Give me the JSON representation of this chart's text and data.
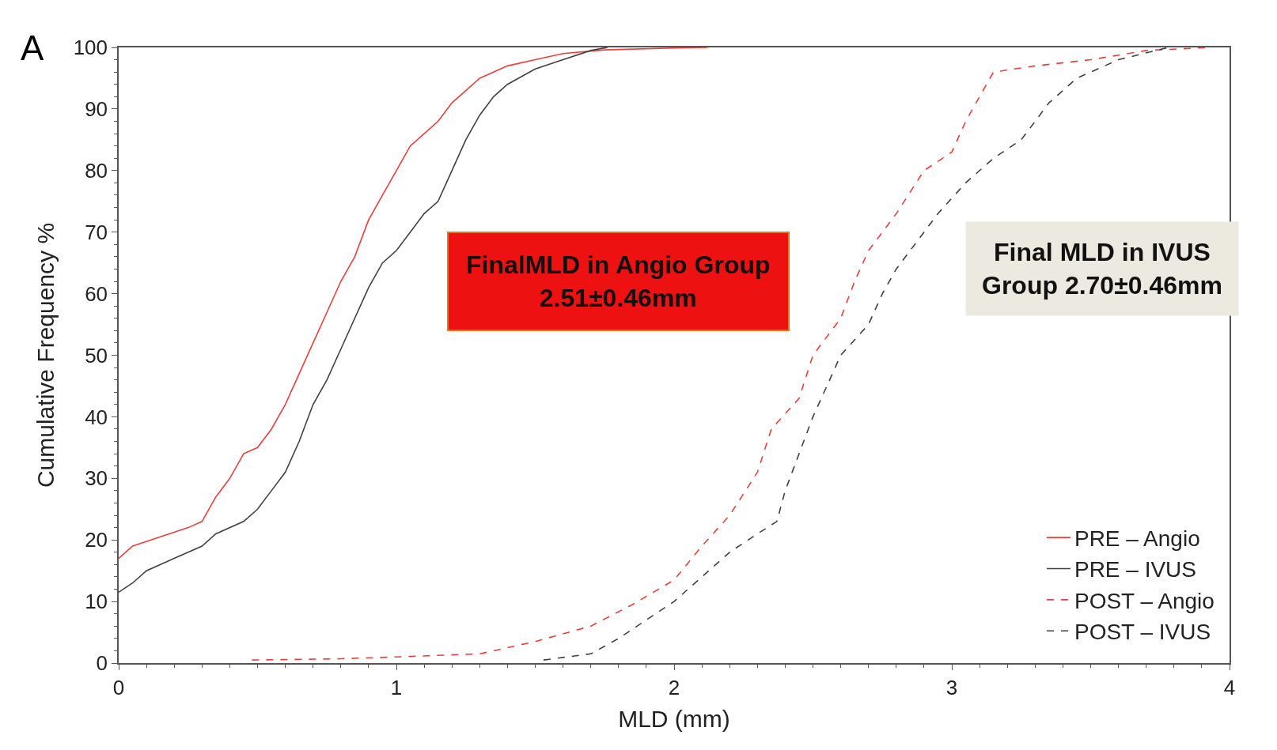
{
  "chart_data": {
    "type": "line",
    "xlabel": "MLD (mm)",
    "ylabel": "Cumulative Frequency %",
    "xlim": [
      0,
      4
    ],
    "xticks": [
      0,
      1,
      2,
      3,
      4
    ],
    "ylim": [
      0,
      100
    ],
    "yticks": [
      0,
      10,
      20,
      30,
      40,
      50,
      60,
      70,
      80,
      90,
      100
    ],
    "legend": "bottom right",
    "marker": "none",
    "annotations": [
      "A",
      "FinalMLD in Angio Group\n2.51±0.46mm",
      "Final MLD in IVUS\nGroup 2.70±0.46mm"
    ],
    "series": [
      {
        "name": "PRE – Angio",
        "color": "#e8403c",
        "line_style": "solid",
        "x": [
          0,
          0.05,
          0.15,
          0.25,
          0.3,
          0.35,
          0.4,
          0.45,
          0.5,
          0.55,
          0.6,
          0.65,
          0.7,
          0.75,
          0.8,
          0.85,
          0.9,
          0.95,
          1.0,
          1.05,
          1.1,
          1.15,
          1.2,
          1.25,
          1.3,
          1.4,
          1.5,
          1.6,
          1.75,
          2.0,
          2.12
        ],
        "values": [
          17,
          19,
          20.5,
          22,
          23,
          27,
          30,
          34,
          35,
          38,
          42,
          47,
          52,
          57,
          62,
          66,
          72,
          76,
          80,
          84,
          86,
          88,
          91,
          93,
          95,
          97,
          98,
          99,
          99.6,
          99.9,
          100
        ]
      },
      {
        "name": "PRE – IVUS",
        "color": "#404040",
        "line_style": "solid",
        "x": [
          0,
          0.05,
          0.1,
          0.2,
          0.3,
          0.35,
          0.45,
          0.5,
          0.55,
          0.6,
          0.65,
          0.7,
          0.75,
          0.8,
          0.85,
          0.9,
          0.95,
          1.0,
          1.05,
          1.1,
          1.15,
          1.2,
          1.25,
          1.3,
          1.35,
          1.4,
          1.5,
          1.6,
          1.7,
          1.76
        ],
        "values": [
          11.5,
          13,
          15,
          17,
          19,
          21,
          23,
          25,
          28,
          31,
          36,
          42,
          46,
          51,
          56,
          61,
          65,
          67,
          70,
          73,
          75,
          80,
          85,
          89,
          92,
          94,
          96.5,
          98,
          99.5,
          100
        ]
      },
      {
        "name": "POST – Angio",
        "color": "#e8403c",
        "line_style": "dashed",
        "x": [
          0.48,
          0.8,
          1.0,
          1.3,
          1.5,
          1.7,
          1.85,
          2.0,
          2.1,
          2.2,
          2.3,
          2.35,
          2.45,
          2.5,
          2.6,
          2.65,
          2.7,
          2.8,
          2.9,
          3.0,
          3.05,
          3.15,
          3.3,
          3.5,
          3.7,
          3.93
        ],
        "values": [
          0.5,
          0.7,
          1,
          1.5,
          3.5,
          6,
          9.5,
          13.5,
          19,
          24,
          31,
          38,
          43,
          50,
          56,
          62,
          67,
          73,
          80,
          83,
          88,
          96,
          97,
          98,
          99.5,
          100
        ]
      },
      {
        "name": "POST – IVUS",
        "color": "#404040",
        "line_style": "dashed",
        "x": [
          1.53,
          1.7,
          1.8,
          1.9,
          2.0,
          2.1,
          2.2,
          2.3,
          2.37,
          2.4,
          2.45,
          2.5,
          2.55,
          2.6,
          2.7,
          2.75,
          2.8,
          2.9,
          2.95,
          3.05,
          3.15,
          3.25,
          3.35,
          3.45,
          3.6,
          3.78
        ],
        "values": [
          0.5,
          1.5,
          4,
          7,
          10,
          14,
          18,
          21,
          23,
          28,
          34,
          40,
          45,
          50,
          55,
          60,
          64,
          70,
          73,
          78,
          82,
          85,
          91,
          95,
          98,
          100
        ]
      }
    ]
  }
}
